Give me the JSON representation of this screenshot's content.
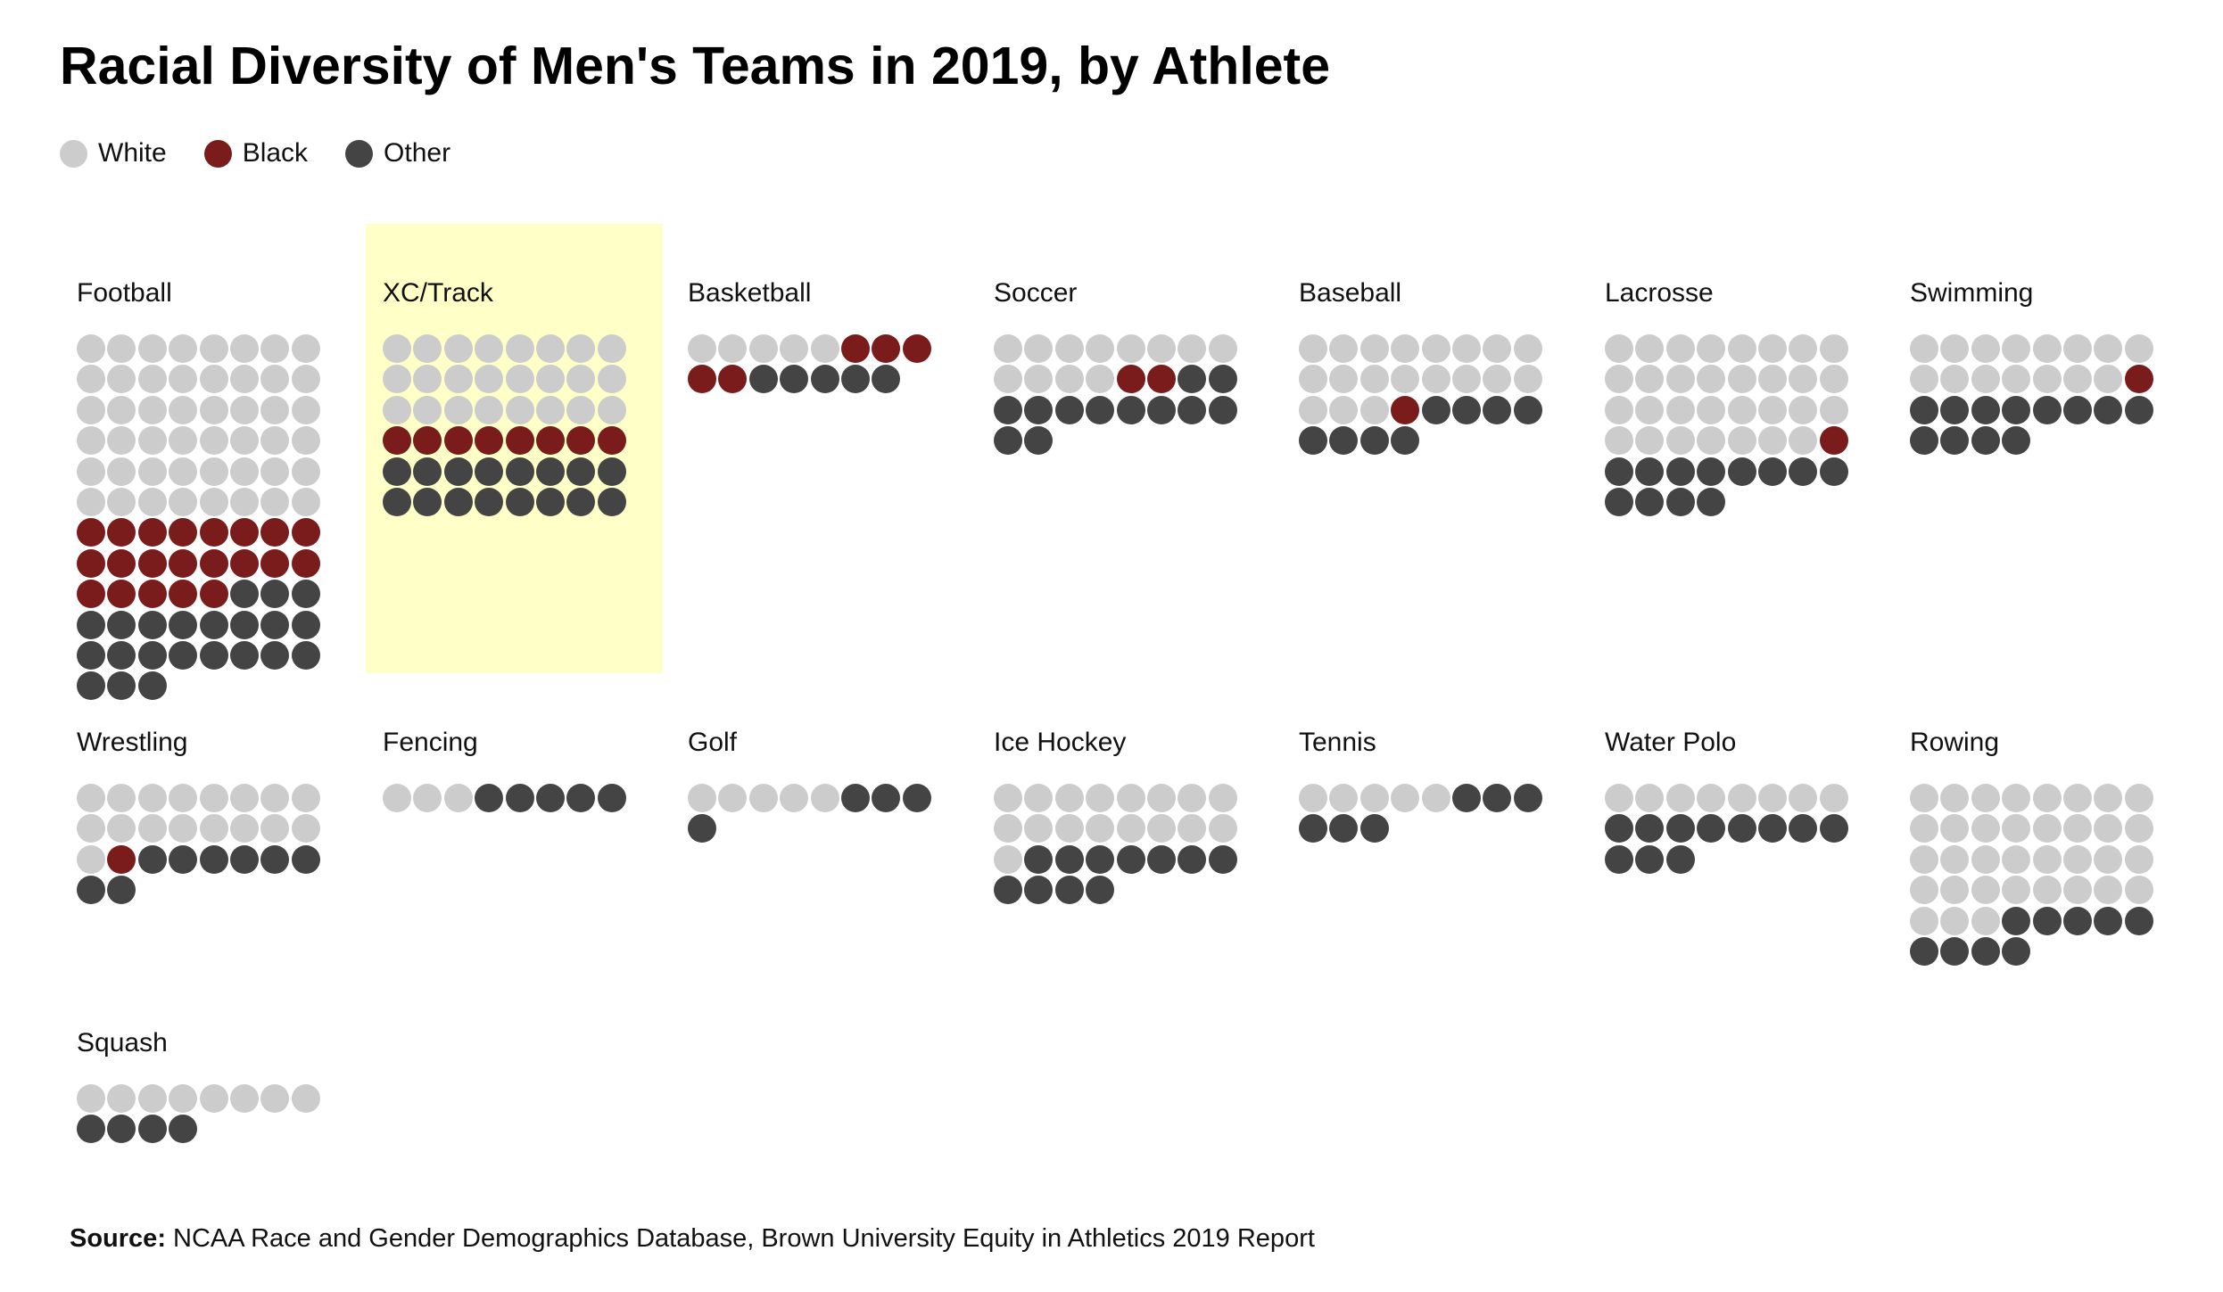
{
  "chart_data": {
    "type": "waffle",
    "title": "Racial Diversity of Men's Teams in 2019, by Athlete",
    "legend": {
      "placement": "top-left",
      "items": [
        {
          "key": "white",
          "label": "White",
          "color": "#cccccc"
        },
        {
          "key": "black",
          "label": "Black",
          "color": "#7a1c1c"
        },
        {
          "key": "other",
          "label": "Other",
          "color": "#444444"
        }
      ]
    },
    "highlighted_team": "XC/Track",
    "highlight_color": "#ffffc8",
    "dots_per_row": 8,
    "teams": [
      {
        "name": "Football",
        "white": 48,
        "black": 21,
        "other": 22
      },
      {
        "name": "XC/Track",
        "white": 24,
        "black": 8,
        "other": 16
      },
      {
        "name": "Basketball",
        "white": 5,
        "black": 5,
        "other": 5
      },
      {
        "name": "Soccer",
        "white": 12,
        "black": 2,
        "other": 12
      },
      {
        "name": "Baseball",
        "white": 19,
        "black": 1,
        "other": 8
      },
      {
        "name": "Lacrosse",
        "white": 31,
        "black": 1,
        "other": 12
      },
      {
        "name": "Swimming",
        "white": 15,
        "black": 1,
        "other": 12
      },
      {
        "name": "Wrestling",
        "white": 17,
        "black": 1,
        "other": 8
      },
      {
        "name": "Fencing",
        "white": 3,
        "black": 0,
        "other": 5
      },
      {
        "name": "Golf",
        "white": 5,
        "black": 0,
        "other": 4
      },
      {
        "name": "Ice Hockey",
        "white": 17,
        "black": 0,
        "other": 11
      },
      {
        "name": "Tennis",
        "white": 5,
        "black": 0,
        "other": 6
      },
      {
        "name": "Water Polo",
        "white": 8,
        "black": 0,
        "other": 11
      },
      {
        "name": "Rowing",
        "white": 35,
        "black": 0,
        "other": 9
      },
      {
        "name": "Squash",
        "white": 8,
        "black": 0,
        "other": 4
      }
    ]
  },
  "source": {
    "label": "Source:",
    "text": " NCAA Race and Gender Demographics Database, Brown University Equity in Athletics 2019 Report"
  }
}
